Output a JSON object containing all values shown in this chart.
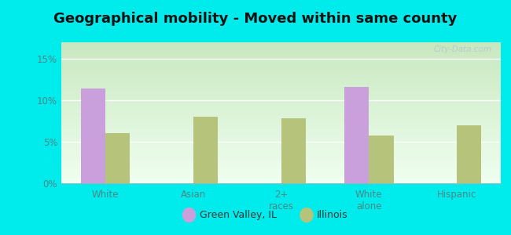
{
  "title": "Geographical mobility - Moved within same county",
  "categories": [
    "White",
    "Asian",
    "2+\nraces",
    "White\nalone",
    "Hispanic"
  ],
  "green_valley_values": [
    11.4,
    0,
    0,
    11.6,
    0
  ],
  "illinois_values": [
    6.0,
    8.0,
    7.8,
    5.8,
    7.0
  ],
  "green_valley_color": "#c9a0dc",
  "illinois_color": "#b5c47a",
  "background_color": "#00ecec",
  "chart_bg_start": "#c8e8c0",
  "chart_bg_end": "#f0fff0",
  "yticks": [
    0,
    5,
    10,
    15
  ],
  "ytick_labels": [
    "0%",
    "5%",
    "10%",
    "15%"
  ],
  "ylim": [
    0,
    17
  ],
  "bar_width": 0.28,
  "legend_labels": [
    "Green Valley, IL",
    "Illinois"
  ],
  "title_fontsize": 13,
  "axis_label_color": "#4a8888",
  "watermark": "City-Data.com"
}
